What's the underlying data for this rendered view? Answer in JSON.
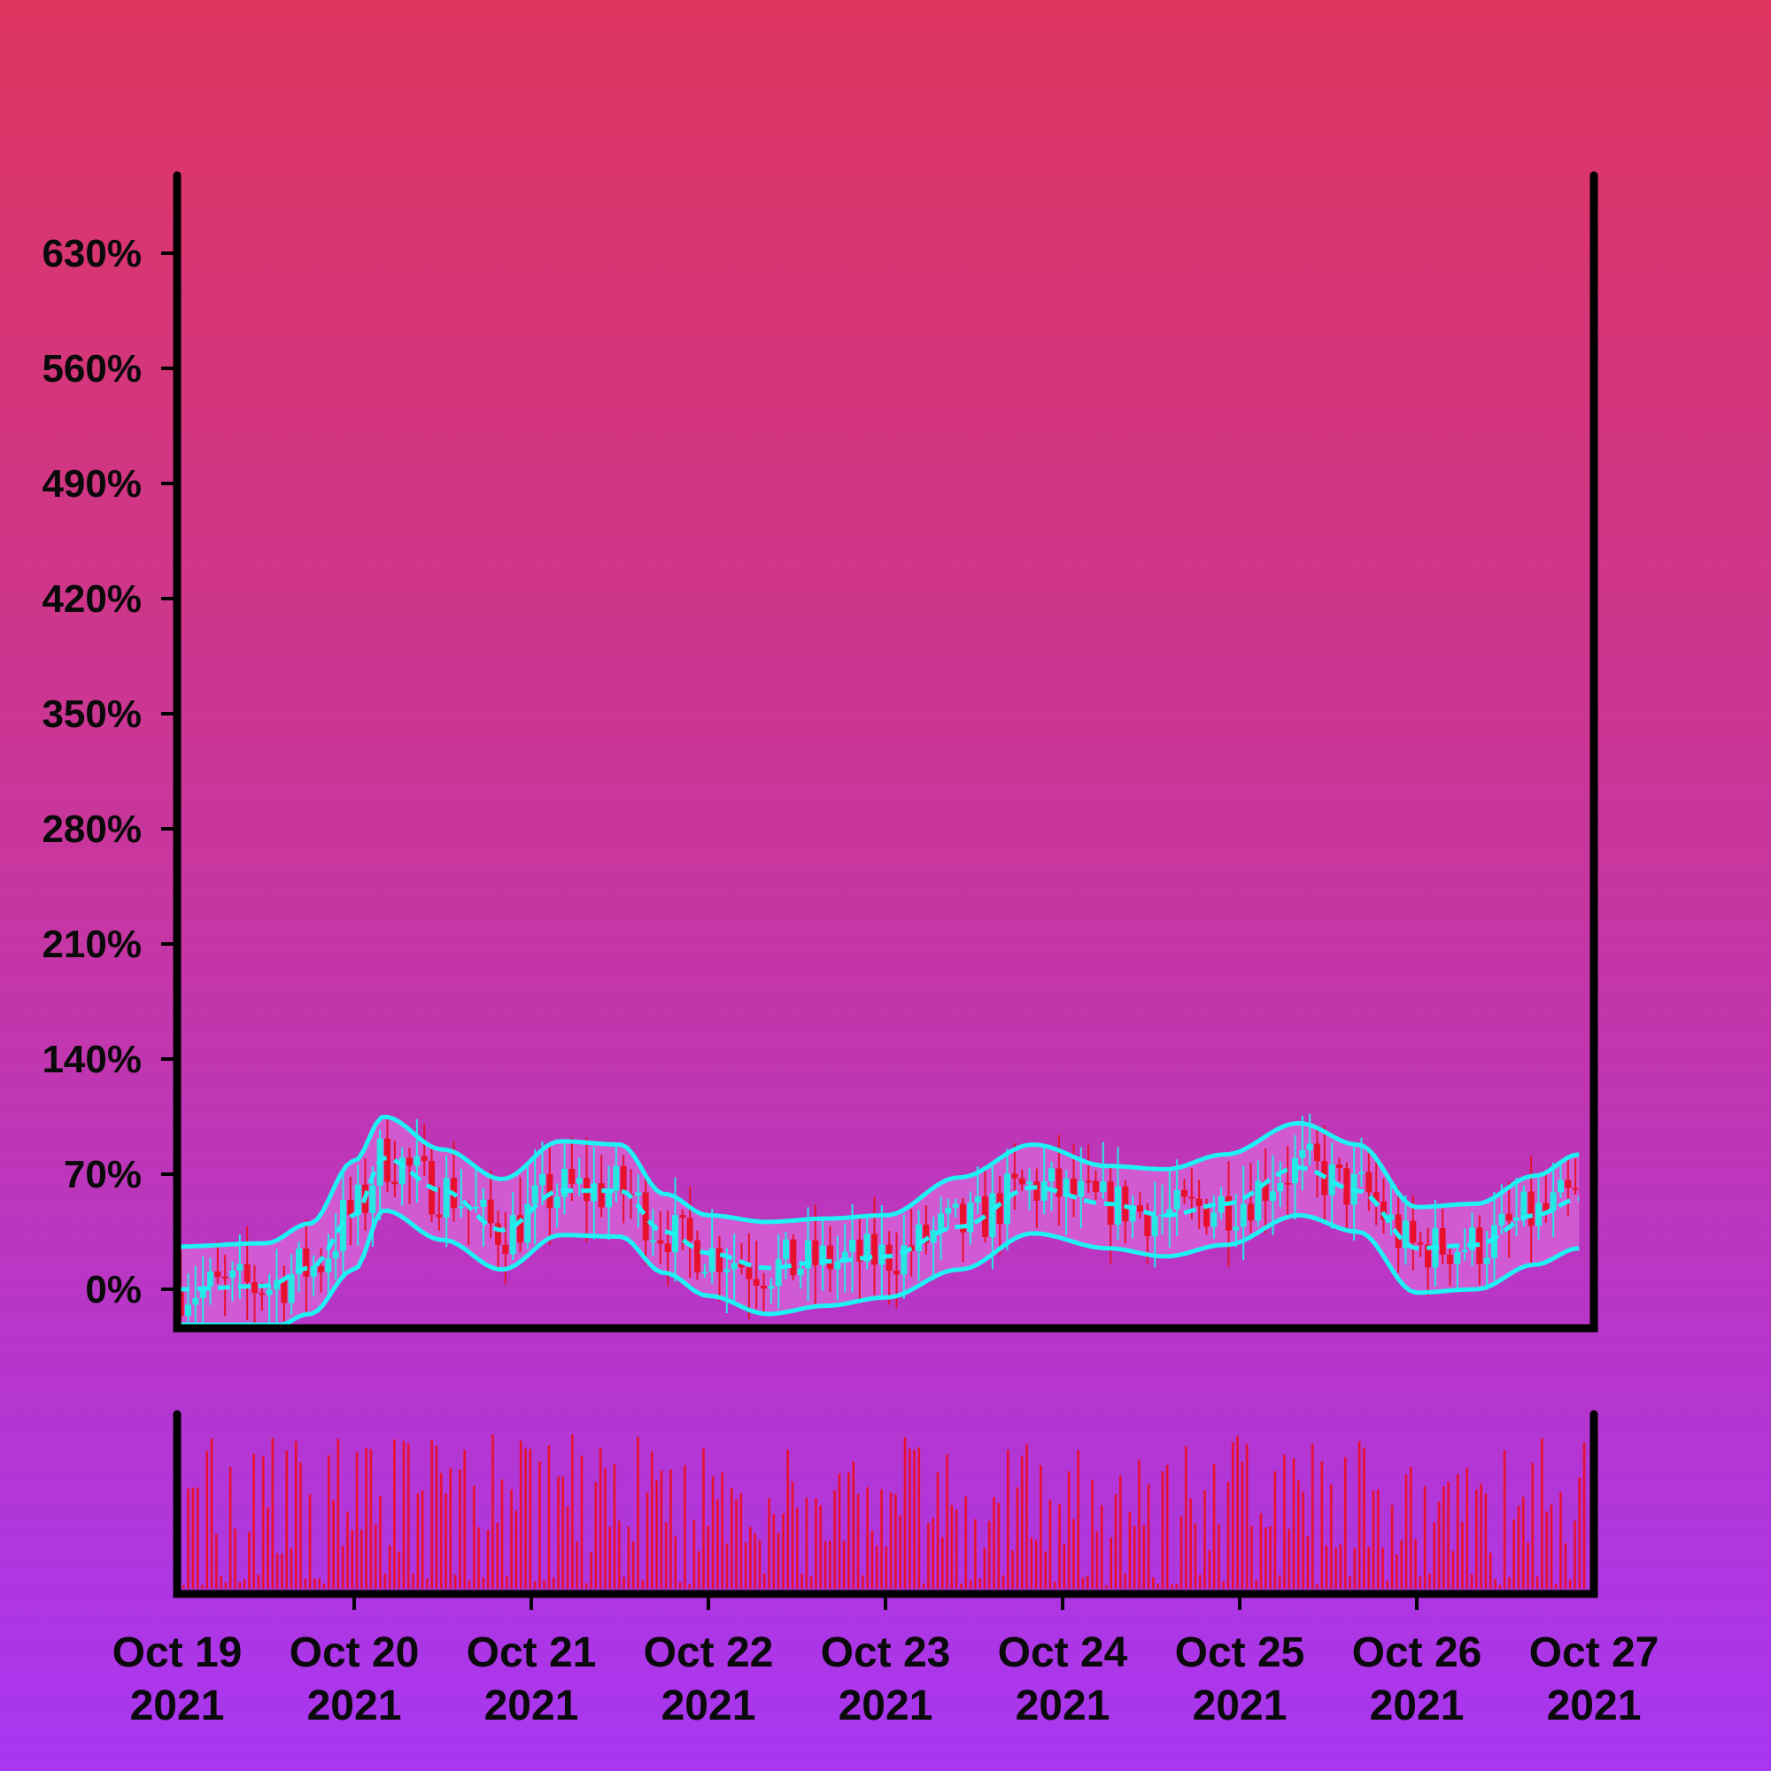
{
  "colors": {
    "background_top": "#de3560",
    "background_bottom": "#a836f2",
    "candle_up": "#26e8e3",
    "candle_down": "#e8112d",
    "band_line": "#1ff2f2",
    "band_fill": "#d866d8",
    "volume_bar": "#e8112d",
    "axis": "#000000"
  },
  "chart_data": {
    "type": "candlestick",
    "overlay": "bollinger_bands",
    "has_volume_panel": true,
    "grid": false,
    "legend": "none",
    "title": "",
    "xlabel": "",
    "ylabel": "",
    "y_unit": "%",
    "ylim": [
      -6,
      670
    ],
    "yticks": [
      0,
      70,
      140,
      210,
      280,
      350,
      420,
      490,
      560,
      630
    ],
    "ytick_labels": [
      "0%",
      "70%",
      "140%",
      "210%",
      "280%",
      "350%",
      "420%",
      "490%",
      "560%",
      "630%"
    ],
    "xlim": [
      "2021-10-19",
      "2021-10-27"
    ],
    "xticks": [
      "2021-10-19",
      "2021-10-20",
      "2021-10-21",
      "2021-10-22",
      "2021-10-23",
      "2021-10-24",
      "2021-10-25",
      "2021-10-26",
      "2021-10-27"
    ],
    "xtick_labels": [
      [
        "Oct 19",
        "2021"
      ],
      [
        "Oct 20",
        "2021"
      ],
      [
        "Oct 21",
        "2021"
      ],
      [
        "Oct 22",
        "2021"
      ],
      [
        "Oct 23",
        "2021"
      ],
      [
        "Oct 24",
        "2021"
      ],
      [
        "Oct 25",
        "2021"
      ],
      [
        "Oct 26",
        "2021"
      ],
      [
        "Oct 27",
        "2021"
      ]
    ],
    "bollinger_middle": {
      "x": [
        "2021-10-19 00:00",
        "2021-10-19 12:00",
        "2021-10-19 18:00",
        "2021-10-20 00:00",
        "2021-10-20 04:00",
        "2021-10-20 12:00",
        "2021-10-20 20:00",
        "2021-10-21 04:00",
        "2021-10-21 12:00",
        "2021-10-21 18:00",
        "2021-10-22 00:00",
        "2021-10-22 08:00",
        "2021-10-22 16:00",
        "2021-10-23 00:00",
        "2021-10-23 10:00",
        "2021-10-23 20:00",
        "2021-10-24 06:00",
        "2021-10-24 14:00",
        "2021-10-24 22:00",
        "2021-10-25 08:00",
        "2021-10-25 16:00",
        "2021-10-26 00:00",
        "2021-10-26 08:00",
        "2021-10-26 16:00",
        "2021-10-26 22:00"
      ],
      "y": [
        0,
        2,
        13,
        45,
        80,
        60,
        36,
        60,
        60,
        35,
        22,
        13,
        17,
        20,
        38,
        62,
        52,
        45,
        52,
        74,
        60,
        25,
        27,
        45,
        55
      ]
    },
    "bollinger_upper": {
      "x": [
        "2021-10-19 00:00",
        "2021-10-19 12:00",
        "2021-10-19 18:00",
        "2021-10-20 00:00",
        "2021-10-20 04:00",
        "2021-10-20 12:00",
        "2021-10-20 20:00",
        "2021-10-21 04:00",
        "2021-10-21 12:00",
        "2021-10-21 18:00",
        "2021-10-22 00:00",
        "2021-10-22 08:00",
        "2021-10-22 16:00",
        "2021-10-23 00:00",
        "2021-10-23 10:00",
        "2021-10-23 20:00",
        "2021-10-24 06:00",
        "2021-10-24 14:00",
        "2021-10-24 22:00",
        "2021-10-25 08:00",
        "2021-10-25 16:00",
        "2021-10-26 00:00",
        "2021-10-26 08:00",
        "2021-10-26 16:00",
        "2021-10-26 22:00"
      ],
      "y": [
        26,
        28,
        40,
        78,
        105,
        85,
        67,
        90,
        88,
        58,
        45,
        41,
        43,
        45,
        68,
        88,
        75,
        73,
        82,
        101,
        88,
        50,
        52,
        69,
        82
      ]
    },
    "bollinger_lower": {
      "x": [
        "2021-10-19 00:00",
        "2021-10-19 12:00",
        "2021-10-19 18:00",
        "2021-10-20 00:00",
        "2021-10-20 04:00",
        "2021-10-20 12:00",
        "2021-10-20 20:00",
        "2021-10-21 04:00",
        "2021-10-21 12:00",
        "2021-10-21 18:00",
        "2021-10-22 00:00",
        "2021-10-22 08:00",
        "2021-10-22 16:00",
        "2021-10-23 00:00",
        "2021-10-23 10:00",
        "2021-10-23 20:00",
        "2021-10-24 06:00",
        "2021-10-24 14:00",
        "2021-10-24 22:00",
        "2021-10-25 08:00",
        "2021-10-25 16:00",
        "2021-10-26 00:00",
        "2021-10-26 08:00",
        "2021-10-26 16:00",
        "2021-10-26 22:00"
      ],
      "y": [
        -28,
        -26,
        -15,
        12,
        48,
        30,
        12,
        33,
        32,
        10,
        -4,
        -15,
        -10,
        -5,
        12,
        34,
        25,
        20,
        27,
        45,
        35,
        -2,
        0,
        15,
        25
      ]
    },
    "candles": {
      "interval": "1h",
      "count": 190,
      "close_range": [
        -18,
        100
      ],
      "high_max": 128,
      "low_min": -28
    },
    "volume": {
      "count": 300,
      "ylim": [
        0,
        1
      ],
      "range": [
        0.02,
        0.96
      ]
    }
  }
}
